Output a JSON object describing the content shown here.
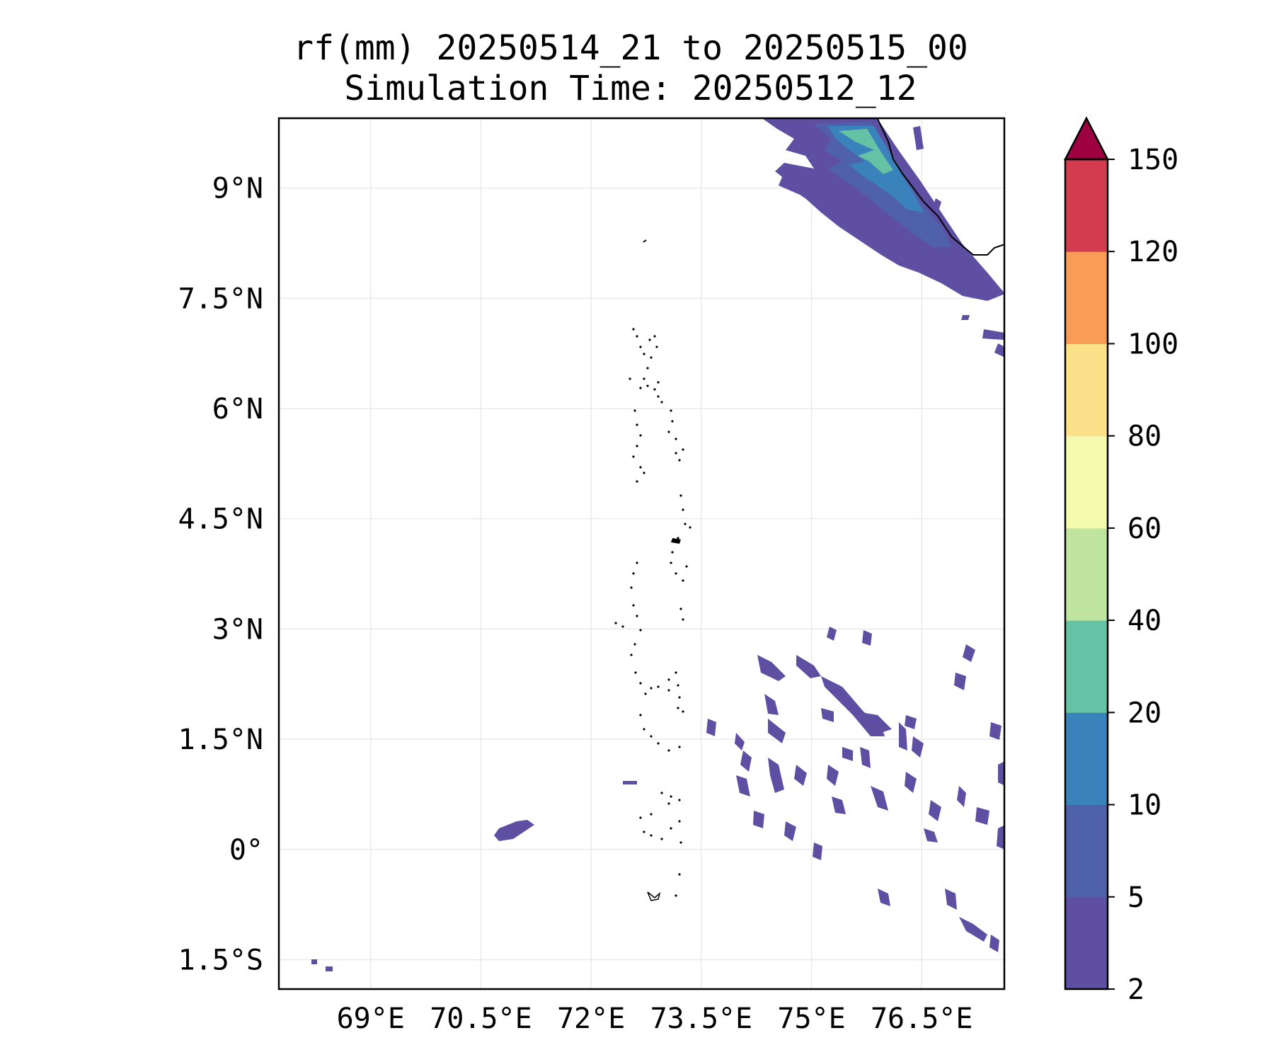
{
  "title": {
    "line1": "rf(mm) 20250514_21 to 20250515_00",
    "line2": "Simulation Time: 20250512_12"
  },
  "map": {
    "lon_range": [
      67.75,
      77.625
    ],
    "lat_range": [
      -1.9,
      9.95
    ],
    "lon_ticks": [
      {
        "value": 69,
        "label": "69°E"
      },
      {
        "value": 70.5,
        "label": "70.5°E"
      },
      {
        "value": 72,
        "label": "72°E"
      },
      {
        "value": 73.5,
        "label": "73.5°E"
      },
      {
        "value": 75,
        "label": "75°E"
      },
      {
        "value": 76.5,
        "label": "76.5°E"
      }
    ],
    "lat_ticks": [
      {
        "value": 9,
        "label": "9°N"
      },
      {
        "value": 7.5,
        "label": "7.5°N"
      },
      {
        "value": 6,
        "label": "6°N"
      },
      {
        "value": 4.5,
        "label": "4.5°N"
      },
      {
        "value": 3,
        "label": "3°N"
      },
      {
        "value": 1.5,
        "label": "1.5°N"
      },
      {
        "value": 0,
        "label": "0°"
      },
      {
        "value": -1.5,
        "label": "1.5°S"
      }
    ],
    "gridlines": true,
    "coastline_color": "#000000"
  },
  "colorbar": {
    "extend": "max",
    "extend_color": "#9e0142",
    "bounds": [
      2,
      5,
      10,
      20,
      40,
      60,
      80,
      100,
      120,
      150
    ],
    "tick_labels": [
      "2",
      "5",
      "10",
      "20",
      "40",
      "60",
      "80",
      "100",
      "120",
      "150"
    ],
    "colors": [
      "#5e4fa2",
      "#4f61aa",
      "#3a82bb",
      "#66c2a5",
      "#bfe5a0",
      "#f4faae",
      "#fce08a",
      "#f89c58",
      "#d33c4e"
    ]
  }
}
